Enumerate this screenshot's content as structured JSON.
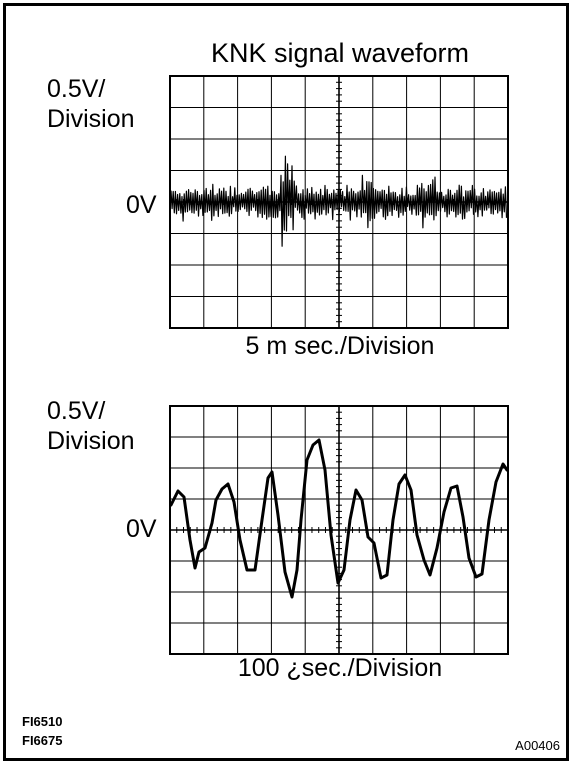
{
  "title": "KNK signal waveform",
  "upper_scope": {
    "volt_division_line1": "0.5V/",
    "volt_division_line2": "Division",
    "zero_label": "0V",
    "time_division": "5 m sec./Division"
  },
  "lower_scope": {
    "volt_division_line1": "0.5V/",
    "volt_division_line2": "Division",
    "zero_label": "0V",
    "time_division": "100 ¿sec./Division"
  },
  "figure_codes": [
    "FI6510",
    "FI6675"
  ],
  "reference_code": "A00406"
}
